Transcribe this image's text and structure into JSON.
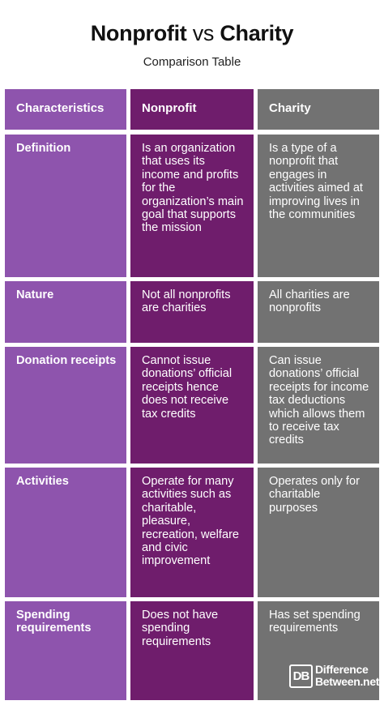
{
  "title": {
    "part1": "Nonprofit",
    "vs": "vs",
    "part2": "Charity"
  },
  "subtitle": "Comparison Table",
  "table": {
    "headers": [
      "Characteristics",
      "Nonprofit",
      "Charity"
    ],
    "rows": [
      {
        "characteristic": "Definition",
        "nonprofit": "Is an organization that uses its income and profits for the organization’s main goal that supports the mission",
        "charity": "Is a type of a nonprofit that engages in activities aimed at improving lives in the communities"
      },
      {
        "characteristic": "Nature",
        "nonprofit": "Not all nonprofits are charities",
        "charity": "All charities are nonprofits"
      },
      {
        "characteristic": "Donation receipts",
        "nonprofit": "Cannot issue donations’ official receipts hence does not receive tax credits",
        "charity": "Can issue donations’ official receipts for income tax deductions which allows them to receive tax credits"
      },
      {
        "characteristic": "Activities",
        "nonprofit": "Operate for many activities such as charitable, pleasure, recreation, welfare and civic improvement",
        "charity": "Operates only for charitable purposes"
      },
      {
        "characteristic": "Spending requirements",
        "nonprofit": "Does not have spending requirements",
        "charity": "Has set spending requirements"
      }
    ]
  },
  "logo": {
    "mark": "DB",
    "line1": "Difference",
    "line2": "Between.net"
  },
  "colors": {
    "characteristics_column": "#8e54ad",
    "nonprofit_column": "#6f1d6c",
    "charity_column": "#727272"
  }
}
